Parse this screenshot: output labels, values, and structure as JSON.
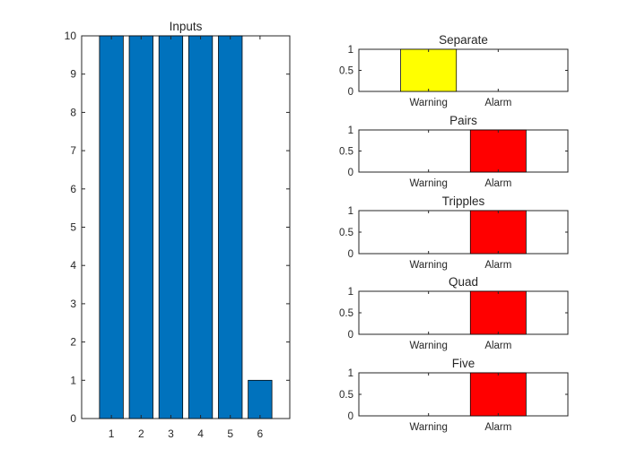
{
  "chart_data": [
    {
      "type": "bar",
      "title": "Inputs",
      "xlabel": "",
      "ylabel": "",
      "categories": [
        "1",
        "2",
        "3",
        "4",
        "5",
        "6"
      ],
      "values": [
        10,
        10,
        10,
        10,
        10,
        1
      ],
      "xlim": [
        0,
        7
      ],
      "ylim": [
        0,
        10
      ],
      "yticks": [
        "0",
        "1",
        "2",
        "3",
        "4",
        "5",
        "6",
        "7",
        "8",
        "9",
        "10"
      ],
      "bar_color": "#0072BD",
      "grid": false
    },
    {
      "type": "bar",
      "title": "Separate",
      "categories": [
        "Warning",
        "Alarm"
      ],
      "values": [
        1,
        0
      ],
      "xlim": [
        0,
        3
      ],
      "ylim": [
        0,
        1
      ],
      "yticks": [
        "0",
        "0.5",
        "1"
      ],
      "bar_color": "#FFFF00",
      "grid": false
    },
    {
      "type": "bar",
      "title": "Pairs",
      "categories": [
        "Warning",
        "Alarm"
      ],
      "values": [
        0,
        1
      ],
      "xlim": [
        0,
        3
      ],
      "ylim": [
        0,
        1
      ],
      "yticks": [
        "0",
        "0.5",
        "1"
      ],
      "bar_color": "#FF0000",
      "grid": false
    },
    {
      "type": "bar",
      "title": "Tripples",
      "categories": [
        "Warning",
        "Alarm"
      ],
      "values": [
        0,
        1
      ],
      "xlim": [
        0,
        3
      ],
      "ylim": [
        0,
        1
      ],
      "yticks": [
        "0",
        "0.5",
        "1"
      ],
      "bar_color": "#FF0000",
      "grid": false
    },
    {
      "type": "bar",
      "title": "Quad",
      "categories": [
        "Warning",
        "Alarm"
      ],
      "values": [
        0,
        1
      ],
      "xlim": [
        0,
        3
      ],
      "ylim": [
        0,
        1
      ],
      "yticks": [
        "0",
        "0.5",
        "1"
      ],
      "bar_color": "#FF0000",
      "grid": false
    },
    {
      "type": "bar",
      "title": "Five",
      "categories": [
        "Warning",
        "Alarm"
      ],
      "values": [
        0,
        1
      ],
      "xlim": [
        0,
        3
      ],
      "ylim": [
        0,
        1
      ],
      "yticks": [
        "0",
        "0.5",
        "1"
      ],
      "bar_color": "#FF0000",
      "grid": false
    }
  ]
}
